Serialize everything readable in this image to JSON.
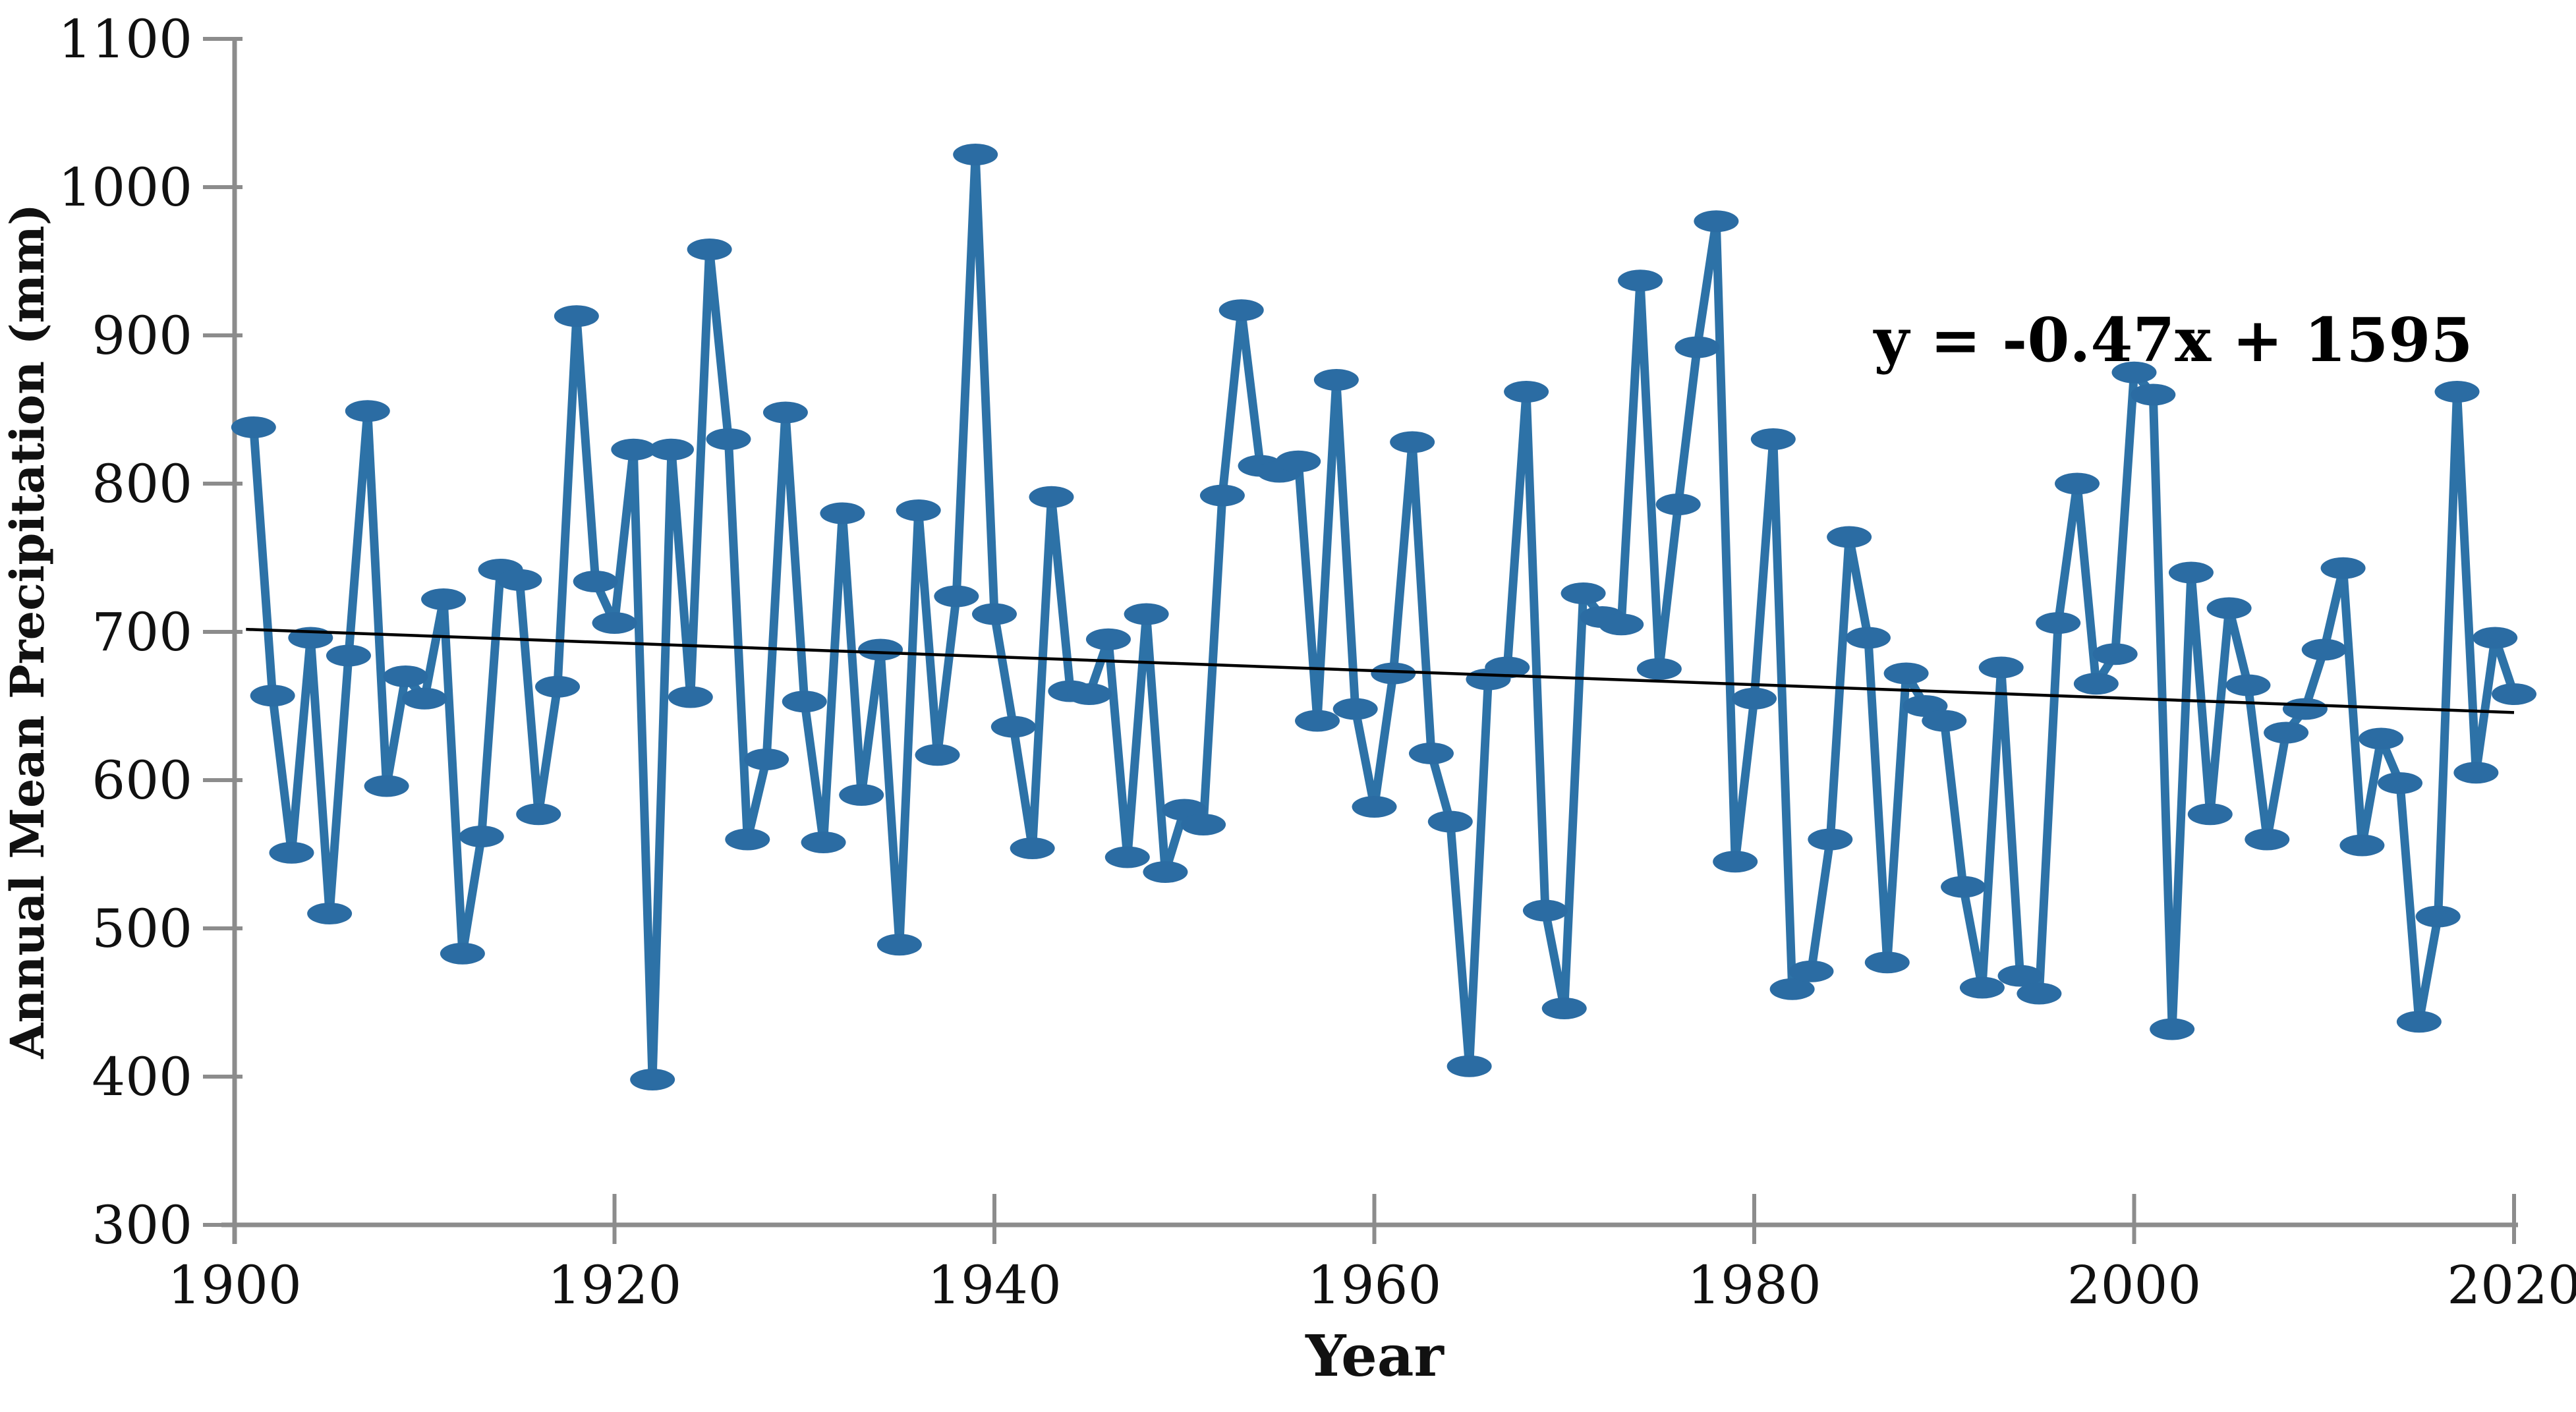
{
  "chart_data": {
    "type": "line",
    "title": "",
    "xlabel": "Year",
    "ylabel": "Annual Mean Precipitation (mm)",
    "x_start": 1901,
    "x_end": 2020,
    "values": [
      838,
      657,
      551,
      696,
      510,
      684,
      849,
      596,
      670,
      655,
      722,
      483,
      562,
      742,
      735,
      577,
      663,
      913,
      734,
      706,
      823,
      398,
      823,
      656,
      958,
      830,
      560,
      614,
      848,
      653,
      558,
      780,
      590,
      688,
      489,
      782,
      617,
      724,
      1022,
      712,
      636,
      554,
      791,
      660,
      658,
      695,
      548,
      712,
      538,
      580,
      570,
      792,
      917,
      812,
      808,
      815,
      640,
      870,
      648,
      582,
      672,
      828,
      618,
      572,
      407,
      668,
      676,
      862,
      512,
      446,
      726,
      710,
      705,
      937,
      675,
      786,
      892,
      977,
      545,
      655,
      830,
      459,
      471,
      560,
      764,
      696,
      477,
      672,
      650,
      640,
      528,
      460,
      676,
      468,
      456,
      706,
      800,
      665,
      685,
      875,
      860,
      432,
      740,
      577,
      716,
      664,
      560,
      632,
      648,
      688,
      743,
      556,
      628,
      598,
      437,
      508,
      862,
      605,
      696,
      658
    ],
    "xlim": [
      1900,
      2020
    ],
    "ylim": [
      300,
      1100
    ],
    "x_ticks": [
      1900,
      1920,
      1940,
      1960,
      1980,
      2000,
      2020
    ],
    "y_ticks": [
      300,
      400,
      500,
      600,
      700,
      800,
      900,
      1000,
      1100
    ],
    "grid": "off",
    "legend": "none",
    "trendline": {
      "slope": -0.47,
      "intercept": 1595,
      "label": "y = -0.47x + 1595"
    },
    "colors": {
      "series": "#2d72a7",
      "marker_fill": "#2b6ca3",
      "trend": "#000000",
      "axis": "#8c8c8c",
      "text": "#111111"
    }
  }
}
